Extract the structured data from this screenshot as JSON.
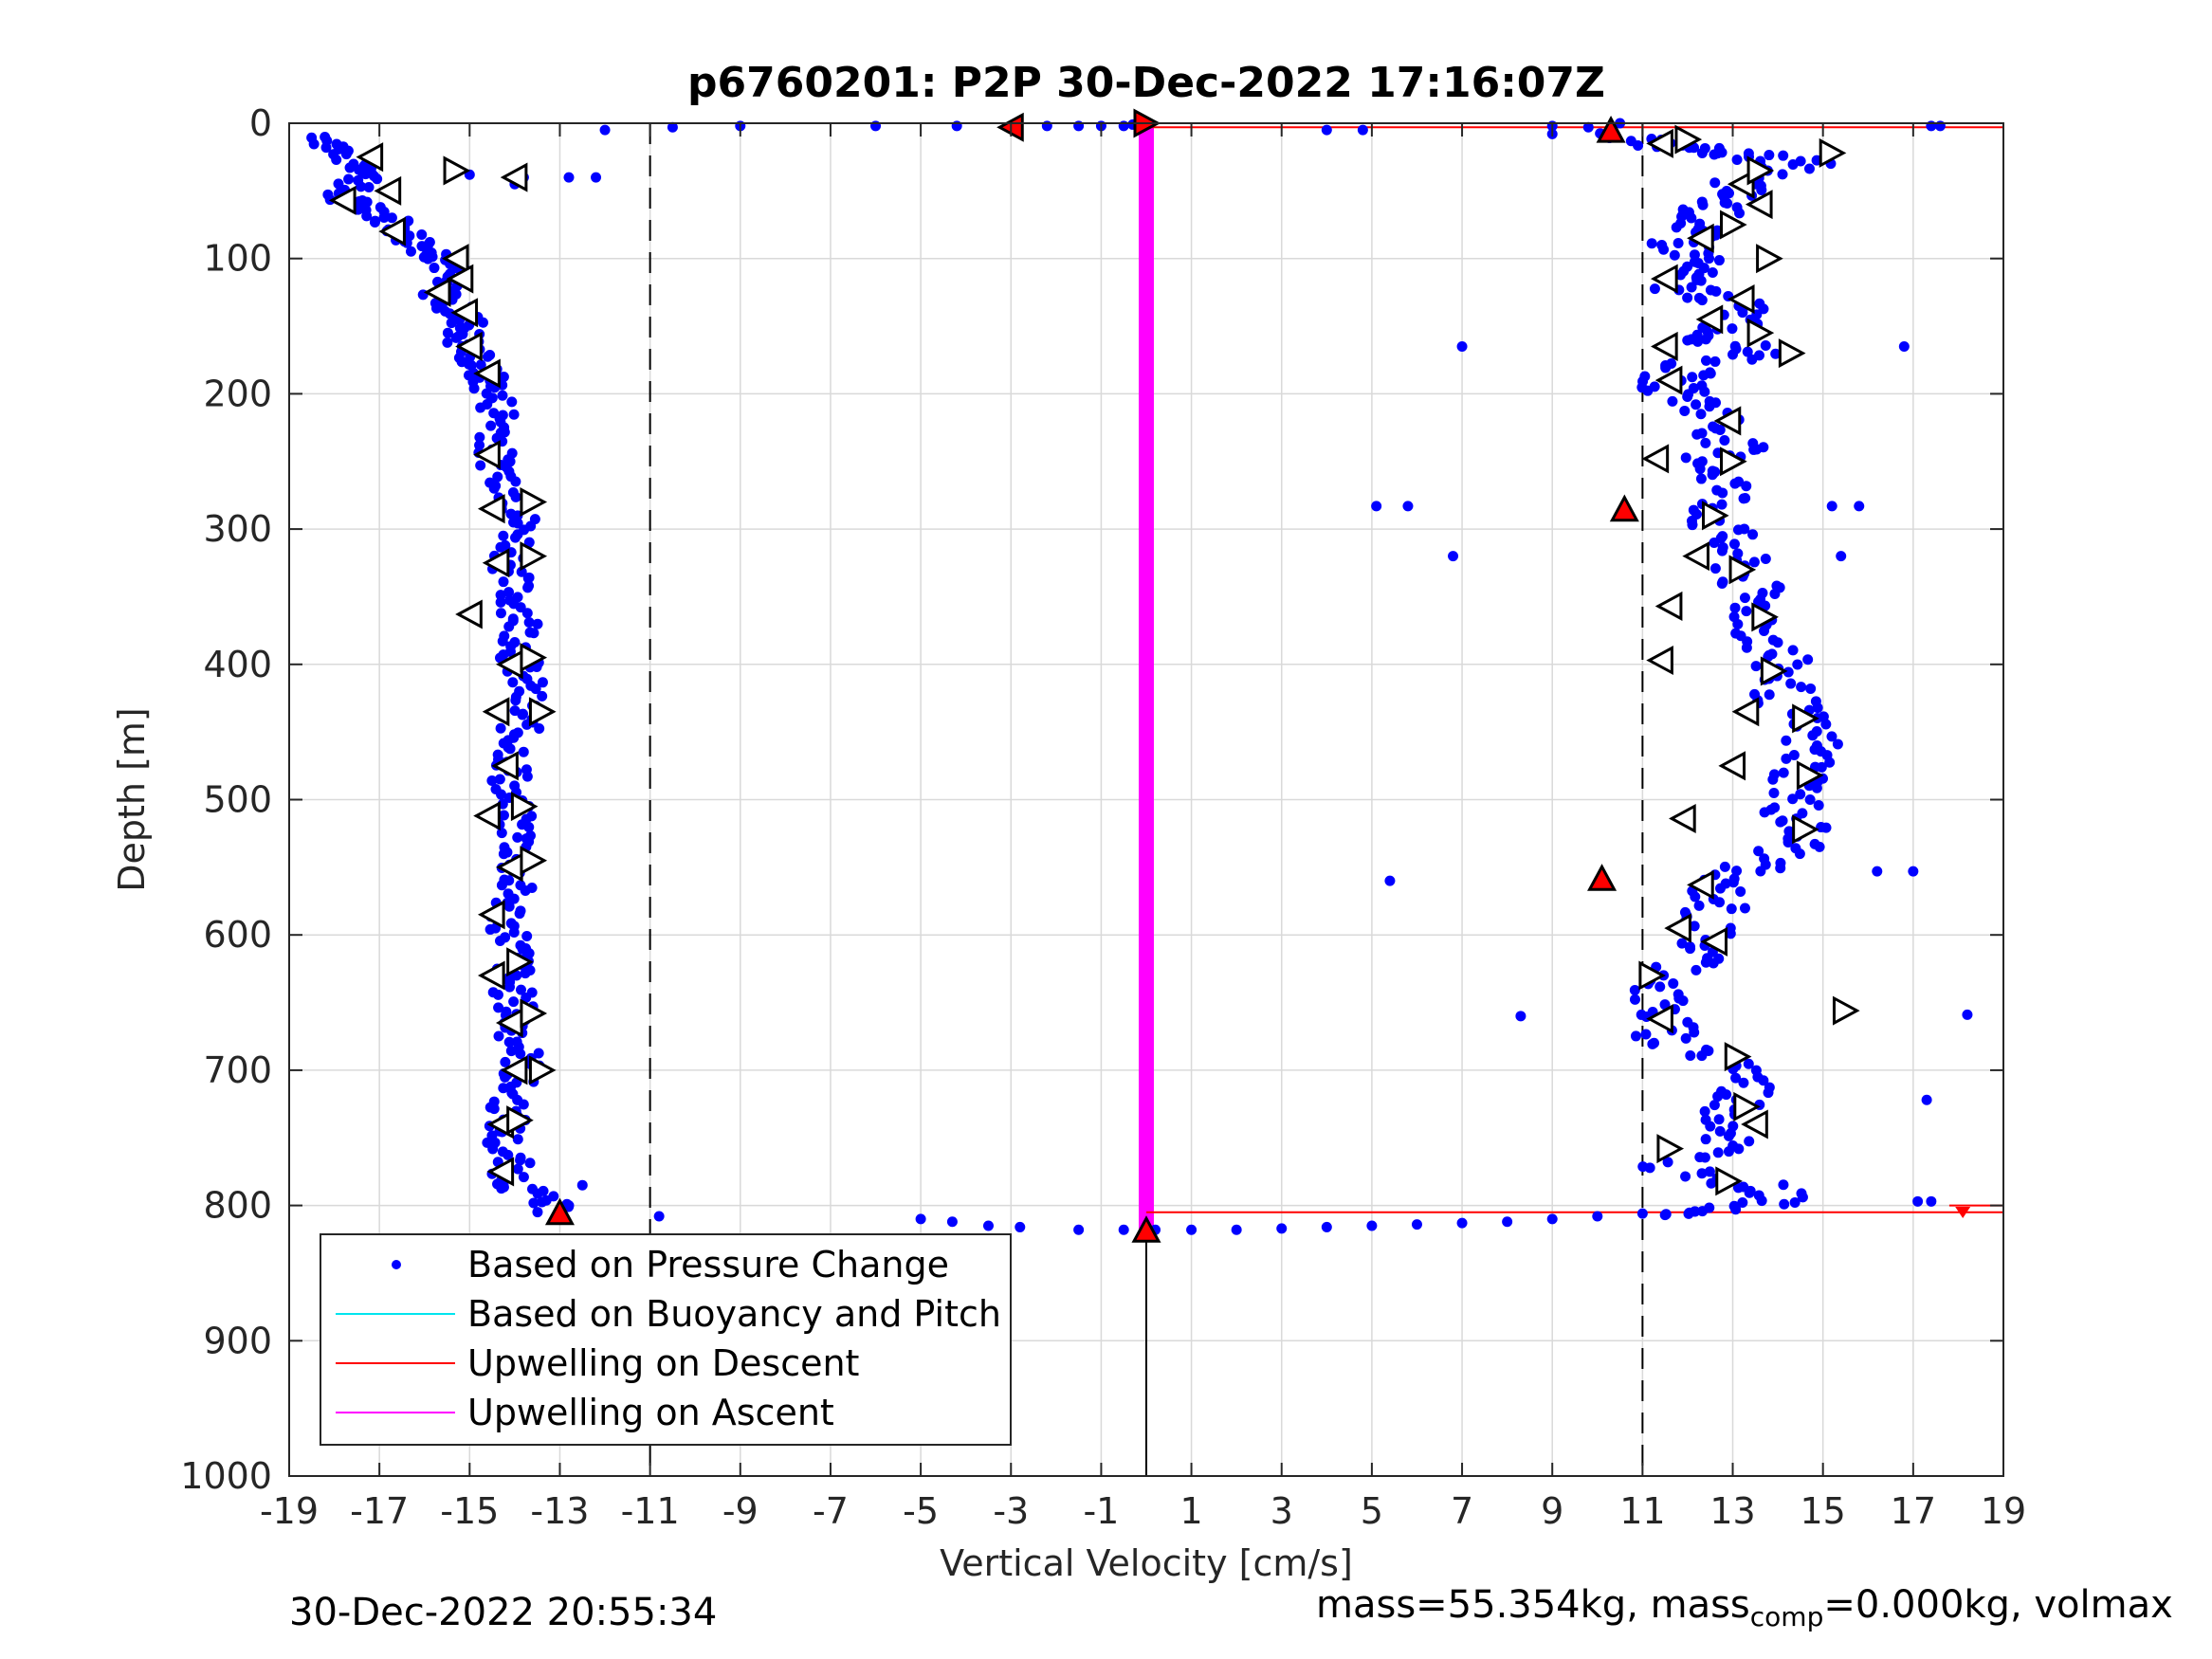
{
  "chart_data": {
    "type": "scatter",
    "title": "p6760201: P2P 30-Dec-2022 17:16:07Z",
    "xlabel": "Vertical Velocity [cm/s]",
    "ylabel": "Depth [m]",
    "xlim": [
      -19,
      19
    ],
    "ylim": [
      0,
      1000
    ],
    "y_reversed": true,
    "grid": true,
    "xticks": [
      -19,
      -17,
      -15,
      -13,
      -11,
      -9,
      -7,
      -5,
      -3,
      -1,
      1,
      3,
      5,
      7,
      9,
      11,
      13,
      15,
      17,
      19
    ],
    "yticks": [
      0,
      100,
      200,
      300,
      400,
      500,
      600,
      700,
      800,
      900,
      1000
    ],
    "legend": {
      "placement": "bottom-left",
      "entries": [
        {
          "label": "Based on Pressure Change",
          "color": "#0000ff",
          "style": "dot"
        },
        {
          "label": "Based on Buoyancy and Pitch",
          "color": "#00e5ee",
          "style": "line"
        },
        {
          "label": "Upwelling on Descent",
          "color": "#ff0000",
          "style": "line"
        },
        {
          "label": "Upwelling on Ascent",
          "color": "#ff00ff",
          "style": "line"
        }
      ]
    },
    "reference_lines": {
      "dashed_x": [
        -11,
        11
      ],
      "zero_line_depth_range": [
        818,
        1000
      ],
      "upwelling_ascent_x": 0,
      "upwelling_ascent_depth_range": [
        0,
        818
      ],
      "upwelling_descent_lines": [
        {
          "depth": 3,
          "x_range": [
            0,
            19
          ]
        },
        {
          "depth": 805,
          "x_range": [
            0,
            19
          ]
        },
        {
          "depth": 800,
          "x_range": [
            17.8,
            19
          ]
        }
      ]
    },
    "series": [
      {
        "name": "Based on Pressure Change",
        "color": "#0000ff",
        "ascent_profile": [
          [
            -18.2,
            10
          ],
          [
            -17.9,
            20
          ],
          [
            -17.5,
            30
          ],
          [
            -17.0,
            35
          ],
          [
            -17.5,
            45
          ],
          [
            -18.0,
            55
          ],
          [
            -17.2,
            60
          ],
          [
            -16.8,
            70
          ],
          [
            -16.5,
            80
          ],
          [
            -16.2,
            88
          ],
          [
            -15.8,
            95
          ],
          [
            -15.5,
            100
          ],
          [
            -15.4,
            110
          ],
          [
            -15.7,
            120
          ],
          [
            -15.6,
            130
          ],
          [
            -15.2,
            140
          ],
          [
            -15.0,
            150
          ],
          [
            -15.2,
            160
          ],
          [
            -14.9,
            170
          ],
          [
            -14.8,
            180
          ],
          [
            -14.6,
            190
          ],
          [
            -14.5,
            200
          ],
          [
            -14.3,
            215
          ],
          [
            -14.3,
            230
          ],
          [
            -14.5,
            245
          ],
          [
            -14.2,
            260
          ],
          [
            -14.0,
            275
          ],
          [
            -13.9,
            290
          ],
          [
            -13.9,
            305
          ],
          [
            -14.0,
            320
          ],
          [
            -14.1,
            335
          ],
          [
            -14.0,
            350
          ],
          [
            -13.8,
            365
          ],
          [
            -13.8,
            380
          ],
          [
            -13.9,
            395
          ],
          [
            -13.8,
            410
          ],
          [
            -13.8,
            425
          ],
          [
            -13.9,
            440
          ],
          [
            -13.9,
            455
          ],
          [
            -14.0,
            470
          ],
          [
            -14.1,
            485
          ],
          [
            -14.2,
            500
          ],
          [
            -14.0,
            515
          ],
          [
            -13.9,
            530
          ],
          [
            -13.9,
            545
          ],
          [
            -14.0,
            560
          ],
          [
            -14.1,
            575
          ],
          [
            -14.2,
            590
          ],
          [
            -14.0,
            605
          ],
          [
            -14.0,
            620
          ],
          [
            -14.1,
            635
          ],
          [
            -14.0,
            650
          ],
          [
            -14.0,
            665
          ],
          [
            -13.9,
            680
          ],
          [
            -13.8,
            695
          ],
          [
            -14.0,
            710
          ],
          [
            -14.1,
            725
          ],
          [
            -14.2,
            740
          ],
          [
            -14.3,
            755
          ],
          [
            -14.1,
            770
          ],
          [
            -14.0,
            785
          ],
          [
            -13.5,
            795
          ],
          [
            -13.0,
            805
          ]
        ],
        "descent_profile": [
          [
            10.5,
            8
          ],
          [
            11.3,
            15
          ],
          [
            12.5,
            20
          ],
          [
            13.5,
            25
          ],
          [
            14.5,
            30
          ],
          [
            13.2,
            40
          ],
          [
            13.0,
            50
          ],
          [
            12.7,
            60
          ],
          [
            12.4,
            70
          ],
          [
            12.0,
            80
          ],
          [
            11.8,
            90
          ],
          [
            12.3,
            100
          ],
          [
            11.9,
            110
          ],
          [
            11.7,
            120
          ],
          [
            12.8,
            130
          ],
          [
            13.2,
            140
          ],
          [
            13.0,
            150
          ],
          [
            12.5,
            160
          ],
          [
            13.8,
            170
          ],
          [
            12.0,
            180
          ],
          [
            11.6,
            190
          ],
          [
            11.8,
            200
          ],
          [
            12.5,
            210
          ],
          [
            12.8,
            225
          ],
          [
            13.0,
            240
          ],
          [
            12.5,
            250
          ],
          [
            12.9,
            265
          ],
          [
            12.8,
            280
          ],
          [
            12.6,
            295
          ],
          [
            12.9,
            310
          ],
          [
            13.1,
            325
          ],
          [
            13.3,
            340
          ],
          [
            13.5,
            355
          ],
          [
            13.6,
            370
          ],
          [
            13.8,
            385
          ],
          [
            14.0,
            400
          ],
          [
            14.1,
            415
          ],
          [
            14.2,
            430
          ],
          [
            14.5,
            445
          ],
          [
            14.8,
            460
          ],
          [
            14.6,
            475
          ],
          [
            14.5,
            490
          ],
          [
            14.3,
            505
          ],
          [
            14.5,
            520
          ],
          [
            14.4,
            535
          ],
          [
            13.5,
            550
          ],
          [
            12.5,
            560
          ],
          [
            12.8,
            575
          ],
          [
            12.3,
            590
          ],
          [
            12.4,
            605
          ],
          [
            12.2,
            620
          ],
          [
            11.5,
            635
          ],
          [
            11.3,
            650
          ],
          [
            11.5,
            665
          ],
          [
            11.5,
            680
          ],
          [
            13.2,
            695
          ],
          [
            13.4,
            710
          ],
          [
            13.1,
            725
          ],
          [
            13.0,
            740
          ],
          [
            12.9,
            755
          ],
          [
            11.5,
            770
          ],
          [
            13.5,
            785
          ],
          [
            14.2,
            795
          ],
          [
            13.0,
            803
          ],
          [
            11.5,
            807
          ]
        ],
        "transitions": [
          [
            -12.0,
            5
          ],
          [
            -10.5,
            3
          ],
          [
            -9.0,
            2
          ],
          [
            -6.0,
            2
          ],
          [
            -4.2,
            2
          ],
          [
            -3.0,
            3
          ],
          [
            -2.2,
            2
          ],
          [
            -1.5,
            2
          ],
          [
            -1.0,
            2
          ],
          [
            -0.5,
            2
          ],
          [
            -0.3,
            1
          ],
          [
            0.0,
            1
          ],
          [
            4.0,
            5
          ],
          [
            4.8,
            5
          ],
          [
            9.0,
            2
          ],
          [
            9.0,
            8
          ],
          [
            9.8,
            3
          ],
          [
            10.5,
            0
          ],
          [
            -10.8,
            808
          ],
          [
            -5.0,
            810
          ],
          [
            -4.3,
            812
          ],
          [
            -3.5,
            815
          ],
          [
            -2.8,
            816
          ],
          [
            -1.5,
            818
          ],
          [
            -0.5,
            818
          ],
          [
            0.2,
            818
          ],
          [
            1.0,
            818
          ],
          [
            2.0,
            818
          ],
          [
            3.0,
            817
          ],
          [
            4.0,
            816
          ],
          [
            5.0,
            815
          ],
          [
            6.0,
            814
          ],
          [
            7.0,
            813
          ],
          [
            8.0,
            812
          ],
          [
            9.0,
            810
          ],
          [
            10.0,
            808
          ],
          [
            11.0,
            806
          ],
          [
            -12.2,
            40
          ],
          [
            -12.8,
            40
          ],
          [
            -13.8,
            40
          ],
          [
            -15.0,
            38
          ],
          [
            -14.0,
            45
          ],
          [
            -12.5,
            785
          ],
          [
            -12.8,
            800
          ]
        ],
        "outliers": [
          [
            7.0,
            165
          ],
          [
            16.8,
            165
          ],
          [
            5.1,
            283
          ],
          [
            5.8,
            283
          ],
          [
            15.2,
            283
          ],
          [
            15.8,
            283
          ],
          [
            6.8,
            320
          ],
          [
            15.4,
            320
          ],
          [
            5.4,
            560
          ],
          [
            16.2,
            553
          ],
          [
            17.0,
            553
          ],
          [
            8.3,
            660
          ],
          [
            18.2,
            659
          ],
          [
            17.3,
            722
          ],
          [
            17.1,
            797
          ],
          [
            17.4,
            797
          ],
          [
            17.6,
            2
          ],
          [
            17.4,
            2
          ],
          [
            15.1,
            25
          ]
        ]
      }
    ],
    "markers": {
      "open_left": [
        [
          -17.2,
          25
        ],
        [
          -14.0,
          40
        ],
        [
          -17.8,
          57
        ],
        [
          -16.8,
          50
        ],
        [
          -16.7,
          80
        ],
        [
          -15.3,
          100
        ],
        [
          -15.2,
          115
        ],
        [
          -15.7,
          125
        ],
        [
          -15.1,
          140
        ],
        [
          -15.0,
          165
        ],
        [
          -14.6,
          185
        ],
        [
          -14.6,
          245
        ],
        [
          -14.5,
          285
        ],
        [
          -14.4,
          325
        ],
        [
          -15.0,
          363
        ],
        [
          -14.1,
          400
        ],
        [
          -14.4,
          435
        ],
        [
          -14.2,
          475
        ],
        [
          -14.6,
          512
        ],
        [
          -14.1,
          550
        ],
        [
          -14.5,
          585
        ],
        [
          -14.5,
          630
        ],
        [
          -14.1,
          665
        ],
        [
          -14.0,
          700
        ],
        [
          -14.3,
          740
        ],
        [
          -14.3,
          775
        ],
        [
          11.4,
          15
        ],
        [
          13.2,
          45
        ],
        [
          13.6,
          60
        ],
        [
          12.3,
          85
        ],
        [
          11.5,
          115
        ],
        [
          13.2,
          130
        ],
        [
          12.5,
          145
        ],
        [
          11.5,
          165
        ],
        [
          11.6,
          190
        ],
        [
          12.9,
          220
        ],
        [
          11.3,
          248
        ],
        [
          12.2,
          320
        ],
        [
          11.6,
          357
        ],
        [
          11.4,
          397
        ],
        [
          13.3,
          435
        ],
        [
          13.0,
          475
        ],
        [
          11.9,
          514
        ],
        [
          12.3,
          563
        ],
        [
          11.8,
          595
        ],
        [
          11.4,
          662
        ],
        [
          12.6,
          605
        ],
        [
          13.5,
          740
        ]
      ],
      "open_right": [
        [
          -15.3,
          35
        ],
        [
          15.2,
          22
        ],
        [
          12.0,
          12
        ],
        [
          13.6,
          35
        ],
        [
          13.0,
          75
        ],
        [
          13.8,
          100
        ],
        [
          13.6,
          155
        ],
        [
          14.3,
          170
        ],
        [
          13.0,
          250
        ],
        [
          12.6,
          290
        ],
        [
          13.2,
          330
        ],
        [
          13.7,
          365
        ],
        [
          13.9,
          405
        ],
        [
          14.6,
          440
        ],
        [
          14.7,
          482
        ],
        [
          14.6,
          522
        ],
        [
          11.2,
          630
        ],
        [
          15.5,
          656
        ],
        [
          13.1,
          690
        ],
        [
          13.3,
          727
        ],
        [
          11.6,
          758
        ],
        [
          12.9,
          782
        ],
        [
          -13.6,
          280
        ],
        [
          -13.6,
          320
        ],
        [
          -13.6,
          395
        ],
        [
          -13.4,
          435
        ],
        [
          -13.8,
          505
        ],
        [
          -13.6,
          545
        ],
        [
          -13.9,
          620
        ],
        [
          -13.6,
          658
        ],
        [
          -13.4,
          700
        ],
        [
          -13.9,
          737
        ]
      ],
      "filled_red": [
        [
          -3.0,
          3,
          "left"
        ],
        [
          0.0,
          0,
          "right"
        ],
        [
          10.3,
          5,
          "up"
        ],
        [
          10.6,
          285,
          "up"
        ],
        [
          10.1,
          558,
          "up"
        ],
        [
          -13.0,
          805,
          "up"
        ],
        [
          0.0,
          818,
          "up"
        ]
      ]
    }
  },
  "footer": {
    "timestamp": "30-Dec-2022 20:55:34",
    "mass_prefix": "mass=55.354kg, mass",
    "mass_sub": "comp",
    "mass_suffix": "=0.000kg, volmax"
  }
}
